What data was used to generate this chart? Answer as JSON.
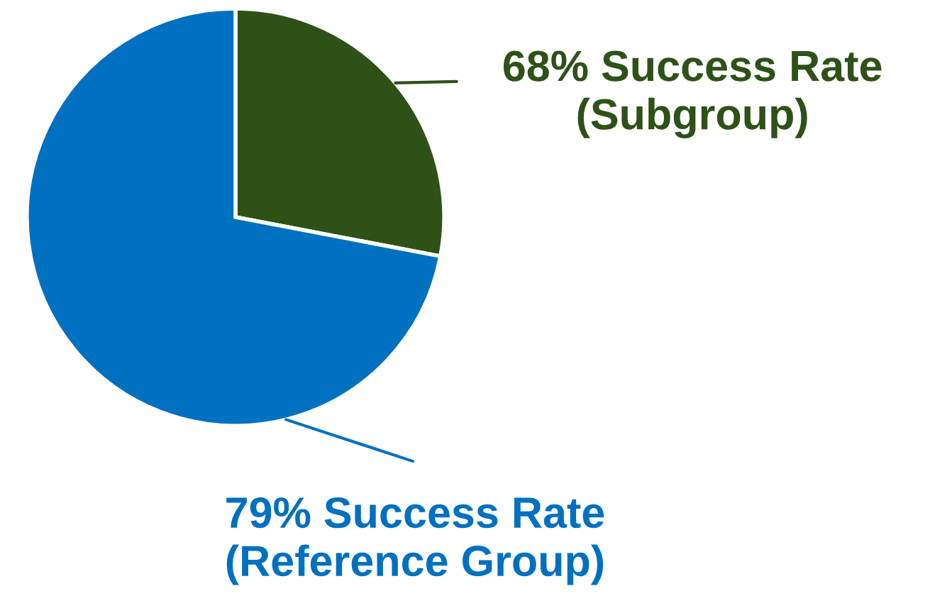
{
  "chart_data": {
    "type": "pie",
    "categories": [
      "68% Success Rate\n(Subgroup)",
      "79% Success Rate\n(Reference Group)"
    ],
    "values": [
      28,
      72
    ],
    "colors": [
      "#2e5118",
      "#0070c0"
    ]
  }
}
